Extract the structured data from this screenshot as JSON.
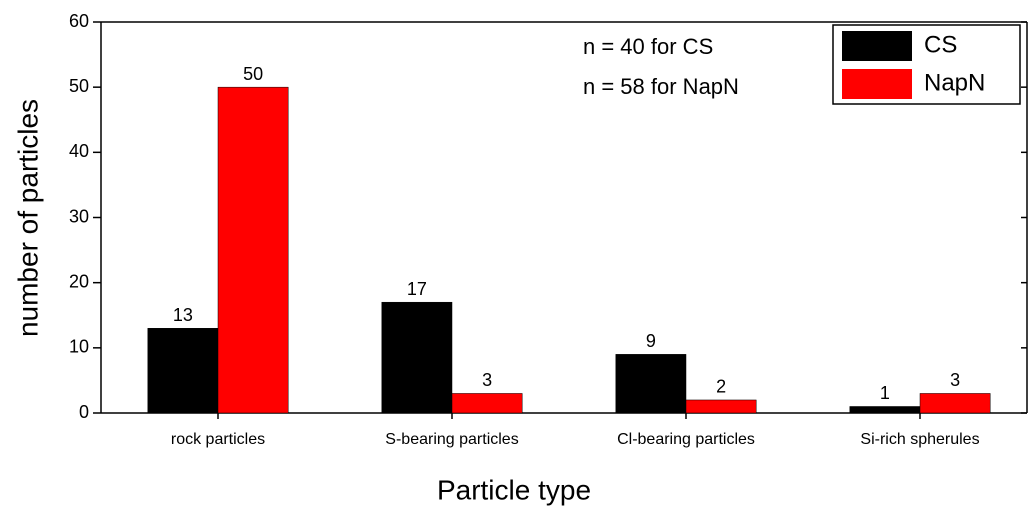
{
  "chart_data": {
    "type": "bar",
    "xlabel": "Particle type",
    "ylabel": "number of particles",
    "categories": [
      "rock particles",
      "S-bearing particles",
      "Cl-bearing particles",
      "Si-rich spherules"
    ],
    "series": [
      {
        "name": "CS",
        "color": "#000000",
        "values": [
          13,
          17,
          9,
          1
        ]
      },
      {
        "name": "NapN",
        "color": "#ff0000",
        "values": [
          50,
          3,
          2,
          3
        ]
      }
    ],
    "annotations": [
      "n = 40 for CS",
      "n = 58 for NapN"
    ],
    "ylim": [
      0,
      60
    ],
    "yticks": [
      0,
      10,
      20,
      30,
      40,
      50,
      60
    ],
    "legend": "upper right"
  }
}
